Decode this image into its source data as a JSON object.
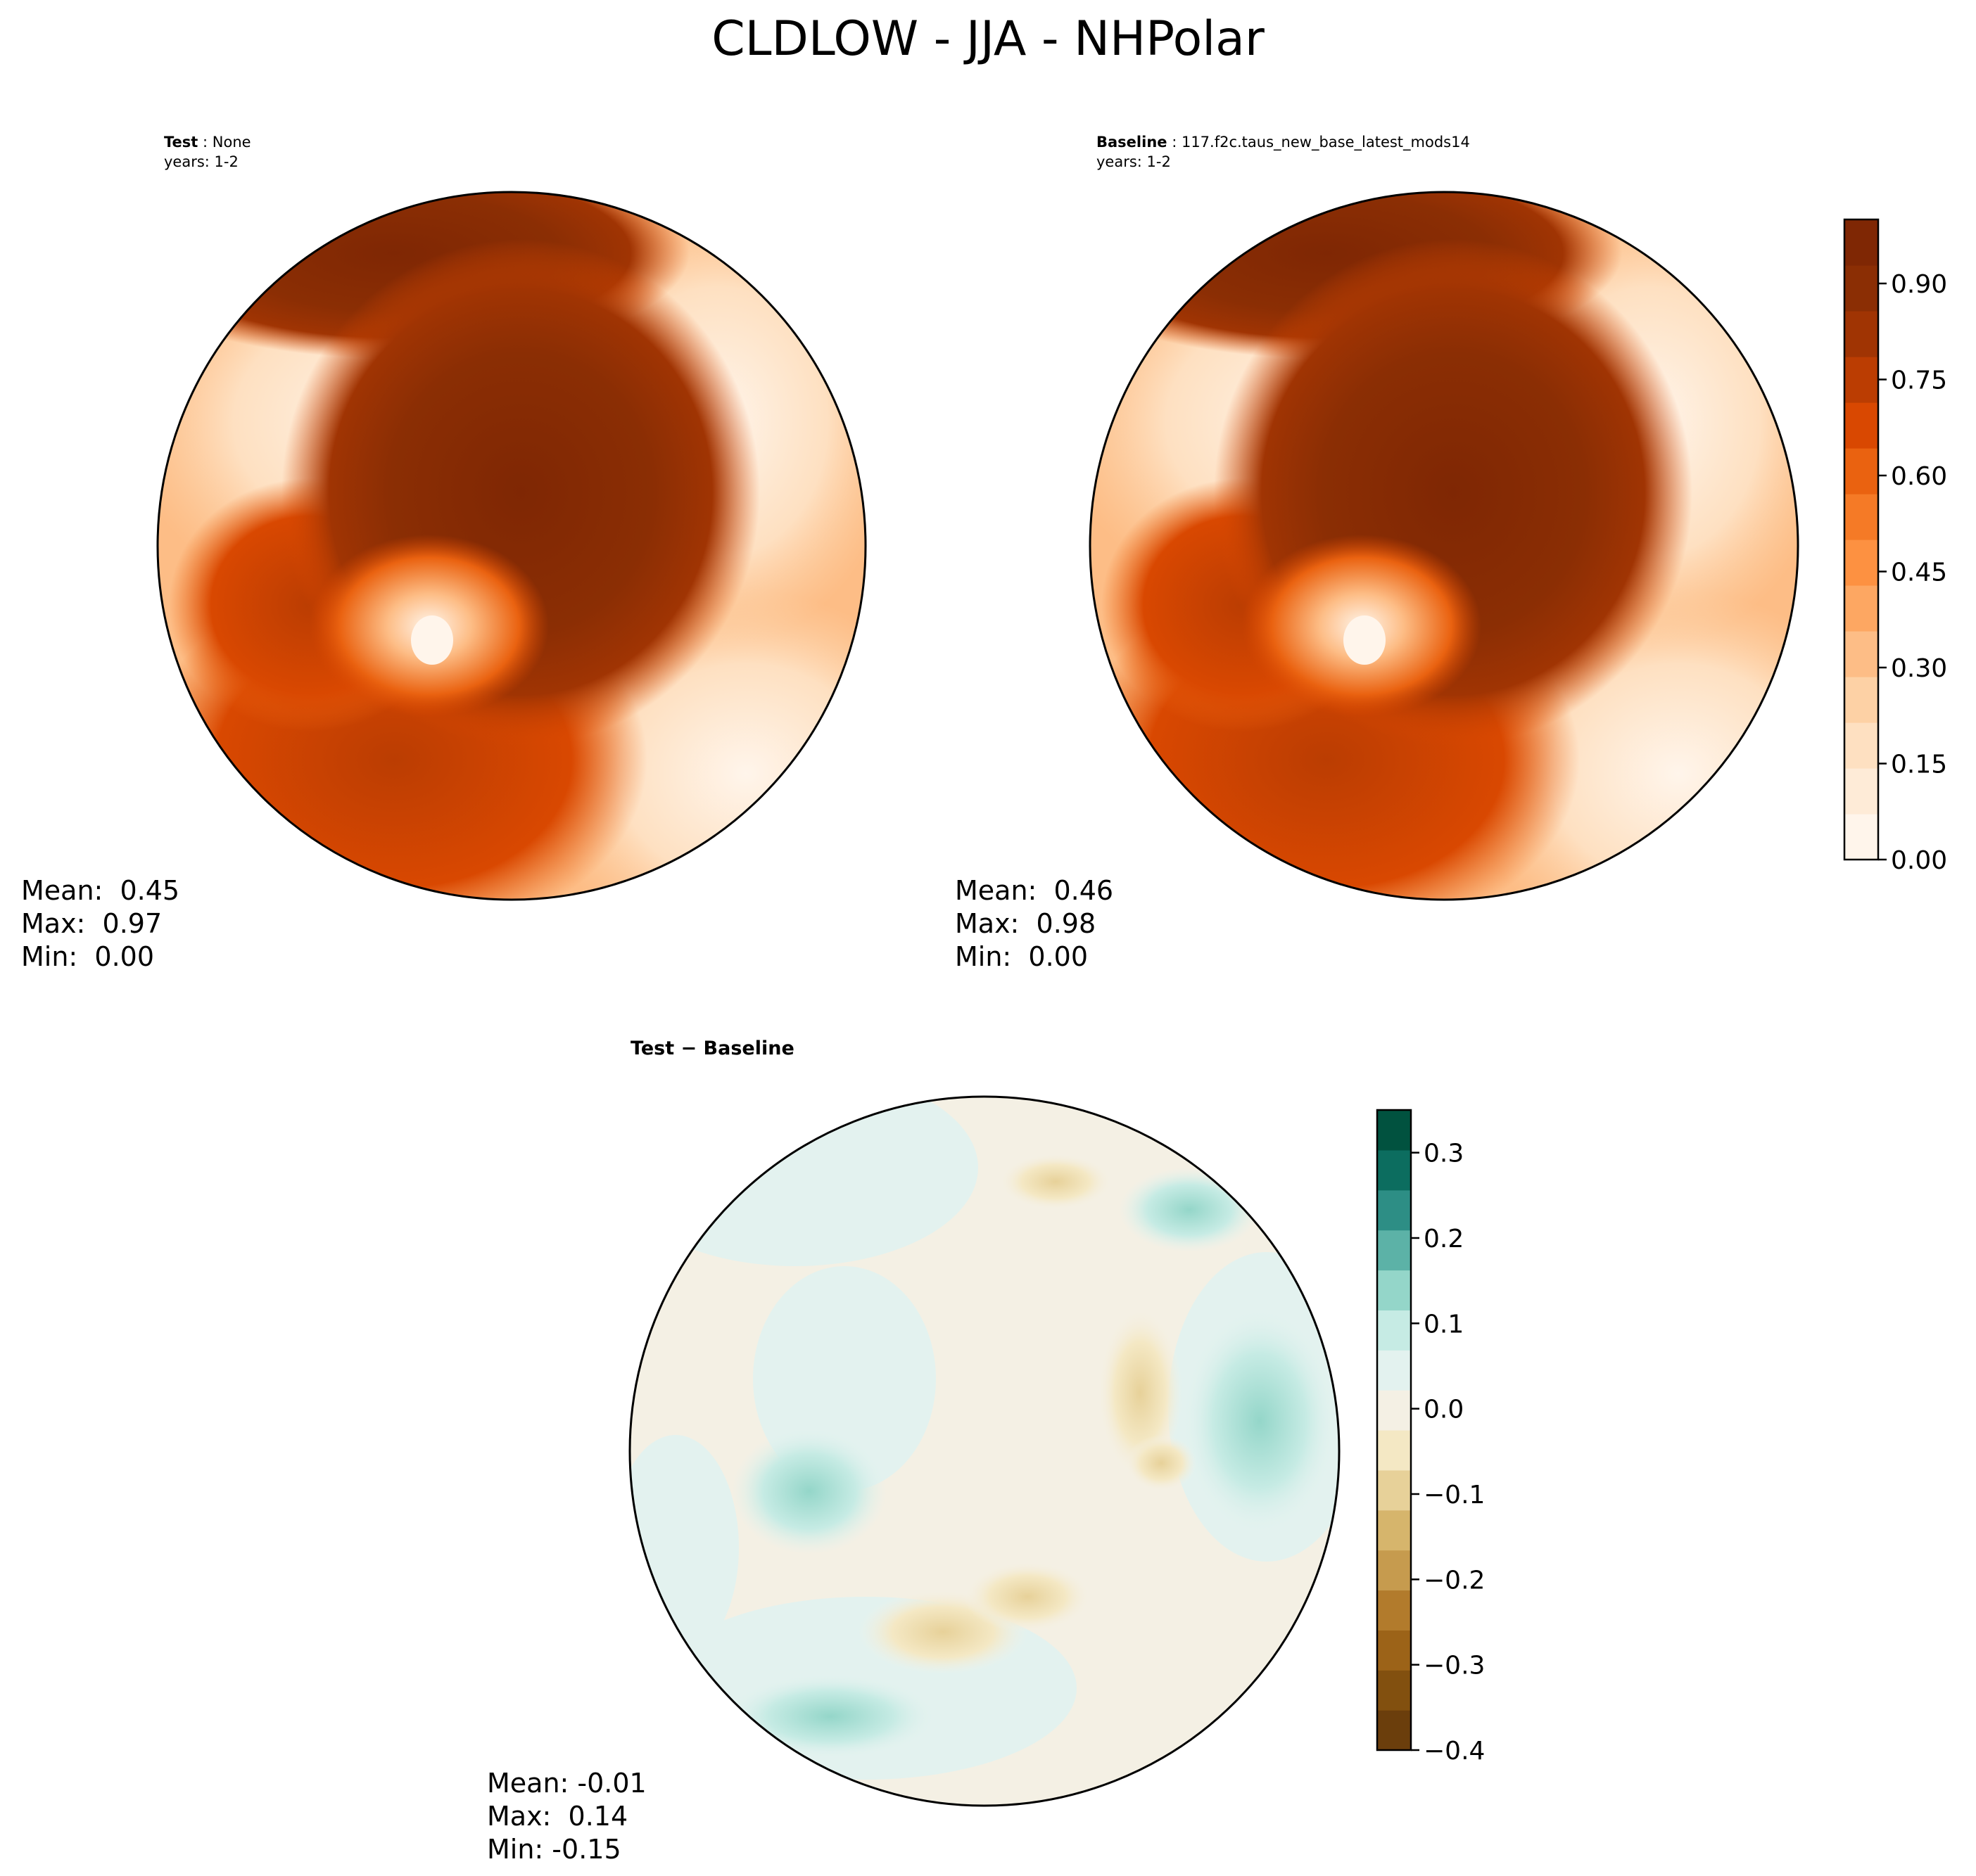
{
  "figure_title": "CLDLOW - JJA - NHPolar",
  "panels": {
    "test": {
      "label": "Test",
      "name": "None",
      "years": "years: 1-2",
      "stats": {
        "mean": "Mean:  0.45",
        "max": "Max:  0.97",
        "min": "Min:  0.00"
      }
    },
    "baseline": {
      "label": "Baseline",
      "name": "117.f2c.taus_new_base_latest_mods14",
      "years": "years: 1-2",
      "stats": {
        "mean": "Mean:  0.46",
        "max": "Max:  0.98",
        "min": "Min:  0.00"
      }
    },
    "diff": {
      "label": "Test − Baseline",
      "stats": {
        "mean": "Mean: -0.01",
        "max": "Max:  0.14",
        "min": "Min: -0.15"
      }
    }
  },
  "chart_data": [
    {
      "type": "heatmap",
      "projection": "north-polar-stereographic",
      "variable": "CLDLOW",
      "season": "JJA",
      "region": "NHPolar",
      "panel": "test",
      "colormap": "Oranges",
      "clim": [
        0.0,
        1.0
      ],
      "colorbar_ticks": [
        "0.00",
        "0.15",
        "0.30",
        "0.45",
        "0.60",
        "0.75",
        "0.90"
      ],
      "stats": {
        "mean": 0.45,
        "max": 0.97,
        "min": 0.0
      }
    },
    {
      "type": "heatmap",
      "projection": "north-polar-stereographic",
      "variable": "CLDLOW",
      "season": "JJA",
      "region": "NHPolar",
      "panel": "baseline",
      "colormap": "Oranges",
      "clim": [
        0.0,
        1.0
      ],
      "colorbar_ticks": [
        "0.00",
        "0.15",
        "0.30",
        "0.45",
        "0.60",
        "0.75",
        "0.90"
      ],
      "stats": {
        "mean": 0.46,
        "max": 0.98,
        "min": 0.0
      }
    },
    {
      "type": "heatmap",
      "projection": "north-polar-stereographic",
      "variable": "CLDLOW",
      "season": "JJA",
      "region": "NHPolar",
      "panel": "diff",
      "colormap": "BrBG",
      "clim": [
        -0.4,
        0.35
      ],
      "colorbar_ticks": [
        "−0.4",
        "−0.3",
        "−0.2",
        "−0.1",
        "0.0",
        "0.1",
        "0.2",
        "0.3"
      ],
      "stats": {
        "mean": -0.01,
        "max": 0.14,
        "min": -0.15
      }
    }
  ],
  "colors": {
    "oranges": [
      "#fff5eb",
      "#feebd7",
      "#fee0c1",
      "#fdd1a5",
      "#fdbd86",
      "#fda762",
      "#fd9141",
      "#f57a26",
      "#ea6210",
      "#d94801",
      "#bb3d02",
      "#a03403",
      "#8b2e04",
      "#7f2704"
    ],
    "brbg": [
      "#6b3e0c",
      "#82500f",
      "#9c6318",
      "#b27b2c",
      "#c69b4e",
      "#d6b56c",
      "#e7d199",
      "#f4e8c4",
      "#f4f0e4",
      "#e3f2ef",
      "#c6ebe4",
      "#94d6c9",
      "#5cb2a7",
      "#2d8e85",
      "#0c6d5f",
      "#01523f"
    ]
  }
}
